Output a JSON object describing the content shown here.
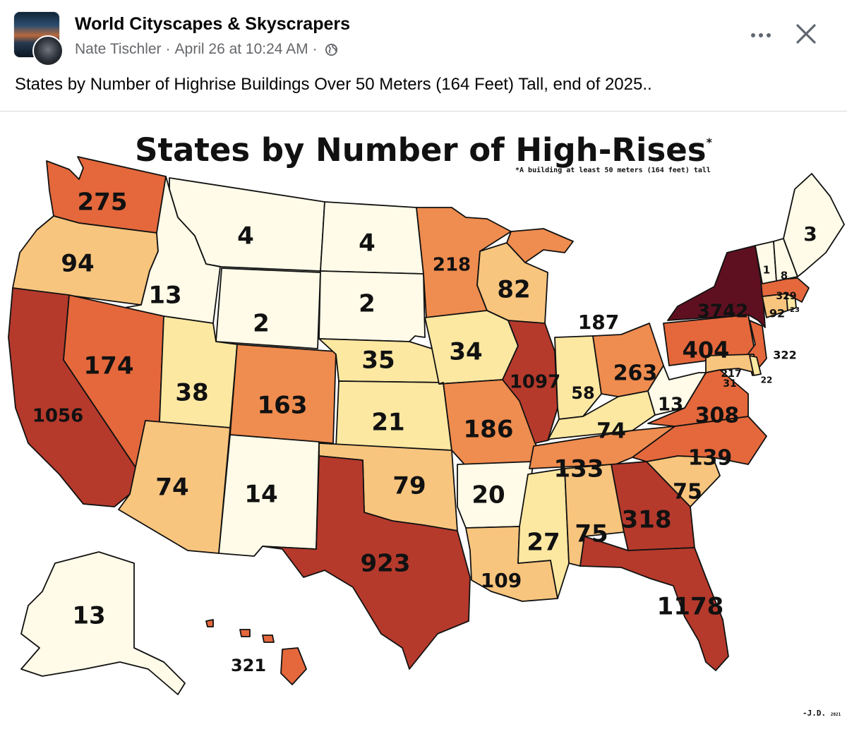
{
  "post": {
    "group_name": "World Cityscapes & Skyscrapers",
    "author": "Nate Tischler",
    "separator": "·",
    "timestamp": "April 26 at 10:24 AM",
    "caption": "States by Number of Highrise Buildings Over 50 Meters (164 Feet) Tall, end of 2025.."
  },
  "icons": {
    "more": "more-options-icon",
    "close": "close-icon",
    "globe": "globe-icon"
  },
  "colors": {
    "level_1": "#fffbe8",
    "level_2": "#fde8a2",
    "level_3": "#f8c57e",
    "level_4": "#ef8c4f",
    "level_5": "#e4683c",
    "level_6": "#b53a2c",
    "level_7": "#5e1020"
  },
  "map": {
    "title": "States by Number of High-Rises",
    "title_mark": "*",
    "footnote": "*A building at least 50 meters (164 feet) tall",
    "signature": "-J.D.",
    "signature_year": "2021"
  },
  "chart_data": {
    "type": "choropleth",
    "title": "States by Number of High-Rises*",
    "subtitle": "*A building at least 50 meters (164 feet) tall",
    "values": [
      {
        "label": "275",
        "value": 275
      },
      {
        "label": "94",
        "value": 94
      },
      {
        "label": "1056",
        "value": 1056
      },
      {
        "label": "13",
        "value": 13
      },
      {
        "label": "174",
        "value": 174
      },
      {
        "label": "4",
        "value": 4
      },
      {
        "label": "2",
        "value": 2
      },
      {
        "label": "38",
        "value": 38
      },
      {
        "label": "74",
        "value": 74
      },
      {
        "label": "163",
        "value": 163
      },
      {
        "label": "14",
        "value": 14
      },
      {
        "label": "4",
        "value": 4
      },
      {
        "label": "2",
        "value": 2
      },
      {
        "label": "35",
        "value": 35
      },
      {
        "label": "21",
        "value": 21
      },
      {
        "label": "79",
        "value": 79
      },
      {
        "label": "923",
        "value": 923
      },
      {
        "label": "218",
        "value": 218
      },
      {
        "label": "34",
        "value": 34
      },
      {
        "label": "186",
        "value": 186
      },
      {
        "label": "20",
        "value": 20
      },
      {
        "label": "109",
        "value": 109
      },
      {
        "label": "82",
        "value": 82
      },
      {
        "label": "1097",
        "value": 1097
      },
      {
        "label": "187",
        "value": 187
      },
      {
        "label": "58",
        "value": 58
      },
      {
        "label": "263",
        "value": 263
      },
      {
        "label": "74",
        "value": 74
      },
      {
        "label": "133",
        "value": 133
      },
      {
        "label": "27",
        "value": 27
      },
      {
        "label": "75",
        "value": 75
      },
      {
        "label": "318",
        "value": 318
      },
      {
        "label": "1178",
        "value": 1178
      },
      {
        "label": "75",
        "value": 75
      },
      {
        "label": "139",
        "value": 139
      },
      {
        "label": "308",
        "value": 308
      },
      {
        "label": "13",
        "value": 13
      },
      {
        "label": "404",
        "value": 404
      },
      {
        "label": "3742",
        "value": 3742
      },
      {
        "label": "322",
        "value": 322
      },
      {
        "label": "217",
        "value": 217
      },
      {
        "label": "31",
        "value": 31
      },
      {
        "label": "22",
        "value": 22
      },
      {
        "label": "92",
        "value": 92
      },
      {
        "label": "23",
        "value": 23
      },
      {
        "label": "329",
        "value": 329
      },
      {
        "label": "1",
        "value": 1
      },
      {
        "label": "8",
        "value": 8
      },
      {
        "label": "3",
        "value": 3
      },
      {
        "label": "13",
        "value": 13
      },
      {
        "label": "321",
        "value": 321
      }
    ]
  }
}
